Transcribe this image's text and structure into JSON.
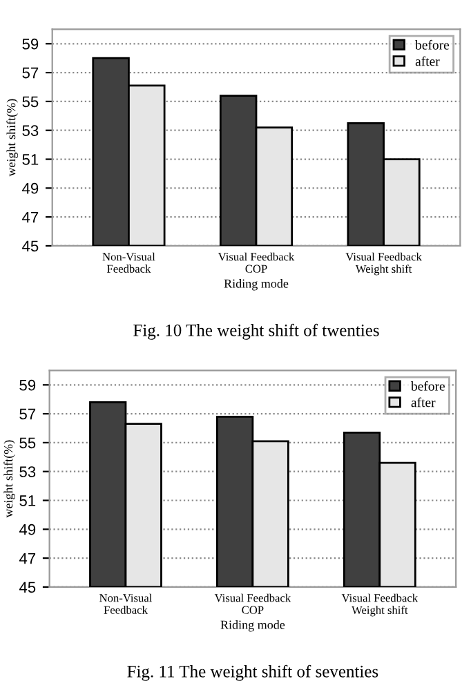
{
  "chart_data": [
    {
      "type": "bar",
      "categories": [
        "Non-Visual\nFeedback",
        "Visual Feedback\nCOP",
        "Visual Feedback\nWeight shift"
      ],
      "xlabel": "Riding mode",
      "ylabel": "weight shift(%)",
      "ylim": [
        45,
        60
      ],
      "yticks": [
        45,
        47,
        49,
        51,
        53,
        55,
        57,
        59
      ],
      "grid": "y",
      "legend": "top right",
      "series": [
        {
          "name": "before",
          "color": "#404040",
          "values": [
            58.0,
            55.4,
            53.5
          ]
        },
        {
          "name": "after",
          "color": "#e6e6e6",
          "values": [
            56.1,
            53.2,
            51.0
          ]
        }
      ],
      "annotations": [
        "Fig. 10 The weight shift of twenties"
      ]
    },
    {
      "type": "bar",
      "categories": [
        "Non-Visual\nFeedback",
        "Visual Feedback\nCOP",
        "Visual Feedback\nWeight shift"
      ],
      "xlabel": "Riding mode",
      "ylabel": "weight shift(%)",
      "ylim": [
        45,
        60
      ],
      "yticks": [
        45,
        47,
        49,
        51,
        53,
        55,
        57,
        59
      ],
      "grid": "y",
      "legend": "top right",
      "series": [
        {
          "name": "before",
          "color": "#404040",
          "values": [
            57.8,
            56.8,
            55.7
          ]
        },
        {
          "name": "after",
          "color": "#e6e6e6",
          "values": [
            56.3,
            55.1,
            53.6
          ]
        }
      ],
      "annotations": [
        "Fig. 11 The weight shift of seventies"
      ]
    }
  ]
}
